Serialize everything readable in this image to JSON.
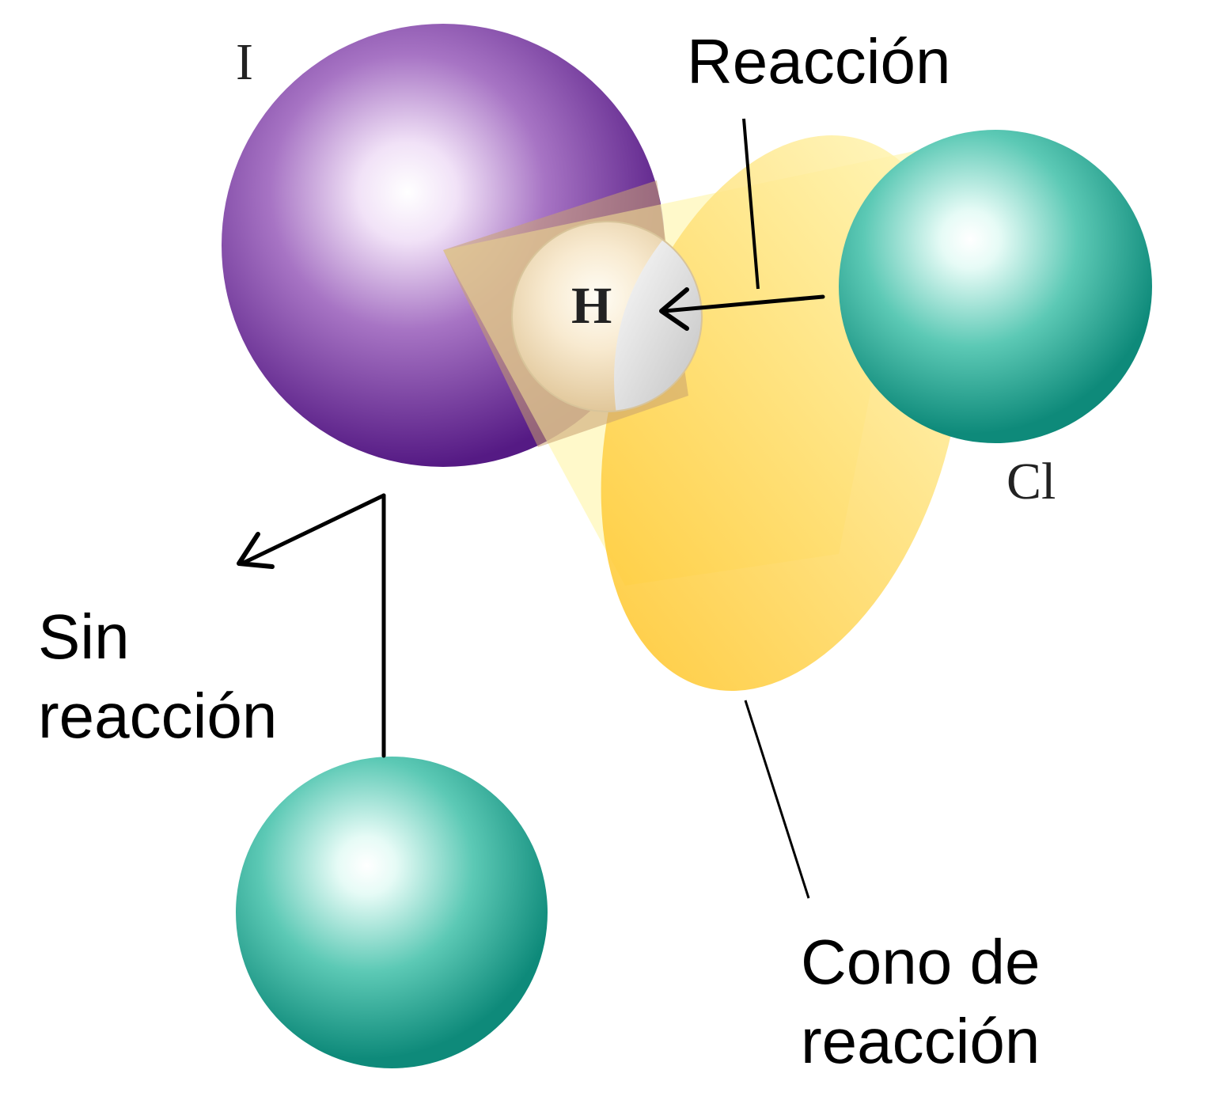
{
  "atoms": {
    "iodine": {
      "symbol": "I"
    },
    "hydrogen": {
      "symbol": "H"
    },
    "chlorine": {
      "symbol": "Cl"
    }
  },
  "labels": {
    "reaction": "Reacción",
    "no_reaction": [
      "Sin",
      "reacción"
    ],
    "reaction_cone": [
      "Cono de",
      "reacción"
    ]
  },
  "colors": {
    "iodine": "#5a1a8a",
    "chlorine": "#0e8f7f",
    "cone": "#ffd23a",
    "hydrogen": "#f2d9a8"
  }
}
